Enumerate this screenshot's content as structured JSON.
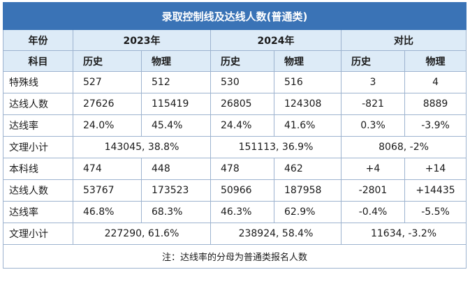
{
  "title": "录取控制线及达线人数(普通类)",
  "header1": {
    "year_label": "年份",
    "y2023": "2023年",
    "y2024": "2024年",
    "compare": "对比"
  },
  "header2": {
    "subject_label": "科目",
    "cols": [
      "历史",
      "物理",
      "历史",
      "物理",
      "历史",
      "物理"
    ]
  },
  "rows": [
    {
      "type": "six",
      "label": "特殊线",
      "cells": [
        "527",
        "512",
        "530",
        "516",
        "3",
        "4"
      ]
    },
    {
      "type": "six",
      "label": "达线人数",
      "cells": [
        "27626",
        "115419",
        "26805",
        "124308",
        "-821",
        "8889"
      ]
    },
    {
      "type": "six",
      "label": "达线率",
      "cells": [
        "24.0%",
        "45.4%",
        "24.4%",
        "41.6%",
        "0.3%",
        "-3.9%"
      ]
    },
    {
      "type": "three",
      "label": "文理小计",
      "cells": [
        "143045, 38.8%",
        "151113, 36.9%",
        "8068, -2%"
      ]
    },
    {
      "type": "six",
      "label": "本科线",
      "cells": [
        "474",
        "448",
        "478",
        "462",
        "+4",
        "+14"
      ]
    },
    {
      "type": "six",
      "label": "达线人数",
      "cells": [
        "53767",
        "173523",
        "50966",
        "187958",
        "-2801",
        "+14435"
      ]
    },
    {
      "type": "six",
      "label": "达线率",
      "cells": [
        "46.8%",
        "68.3%",
        "46.3%",
        "62.9%",
        "-0.4%",
        "-5.5%"
      ]
    },
    {
      "type": "three",
      "label": "文理小计",
      "cells": [
        "227290, 61.6%",
        "238924, 58.4%",
        "11634, -3.2%"
      ]
    }
  ],
  "note": "注：达线率的分母为普通类报名人数",
  "colors": {
    "title_bg": "#3a73b6",
    "header_bg": "#ddebf7",
    "border": "#9db3cf"
  }
}
